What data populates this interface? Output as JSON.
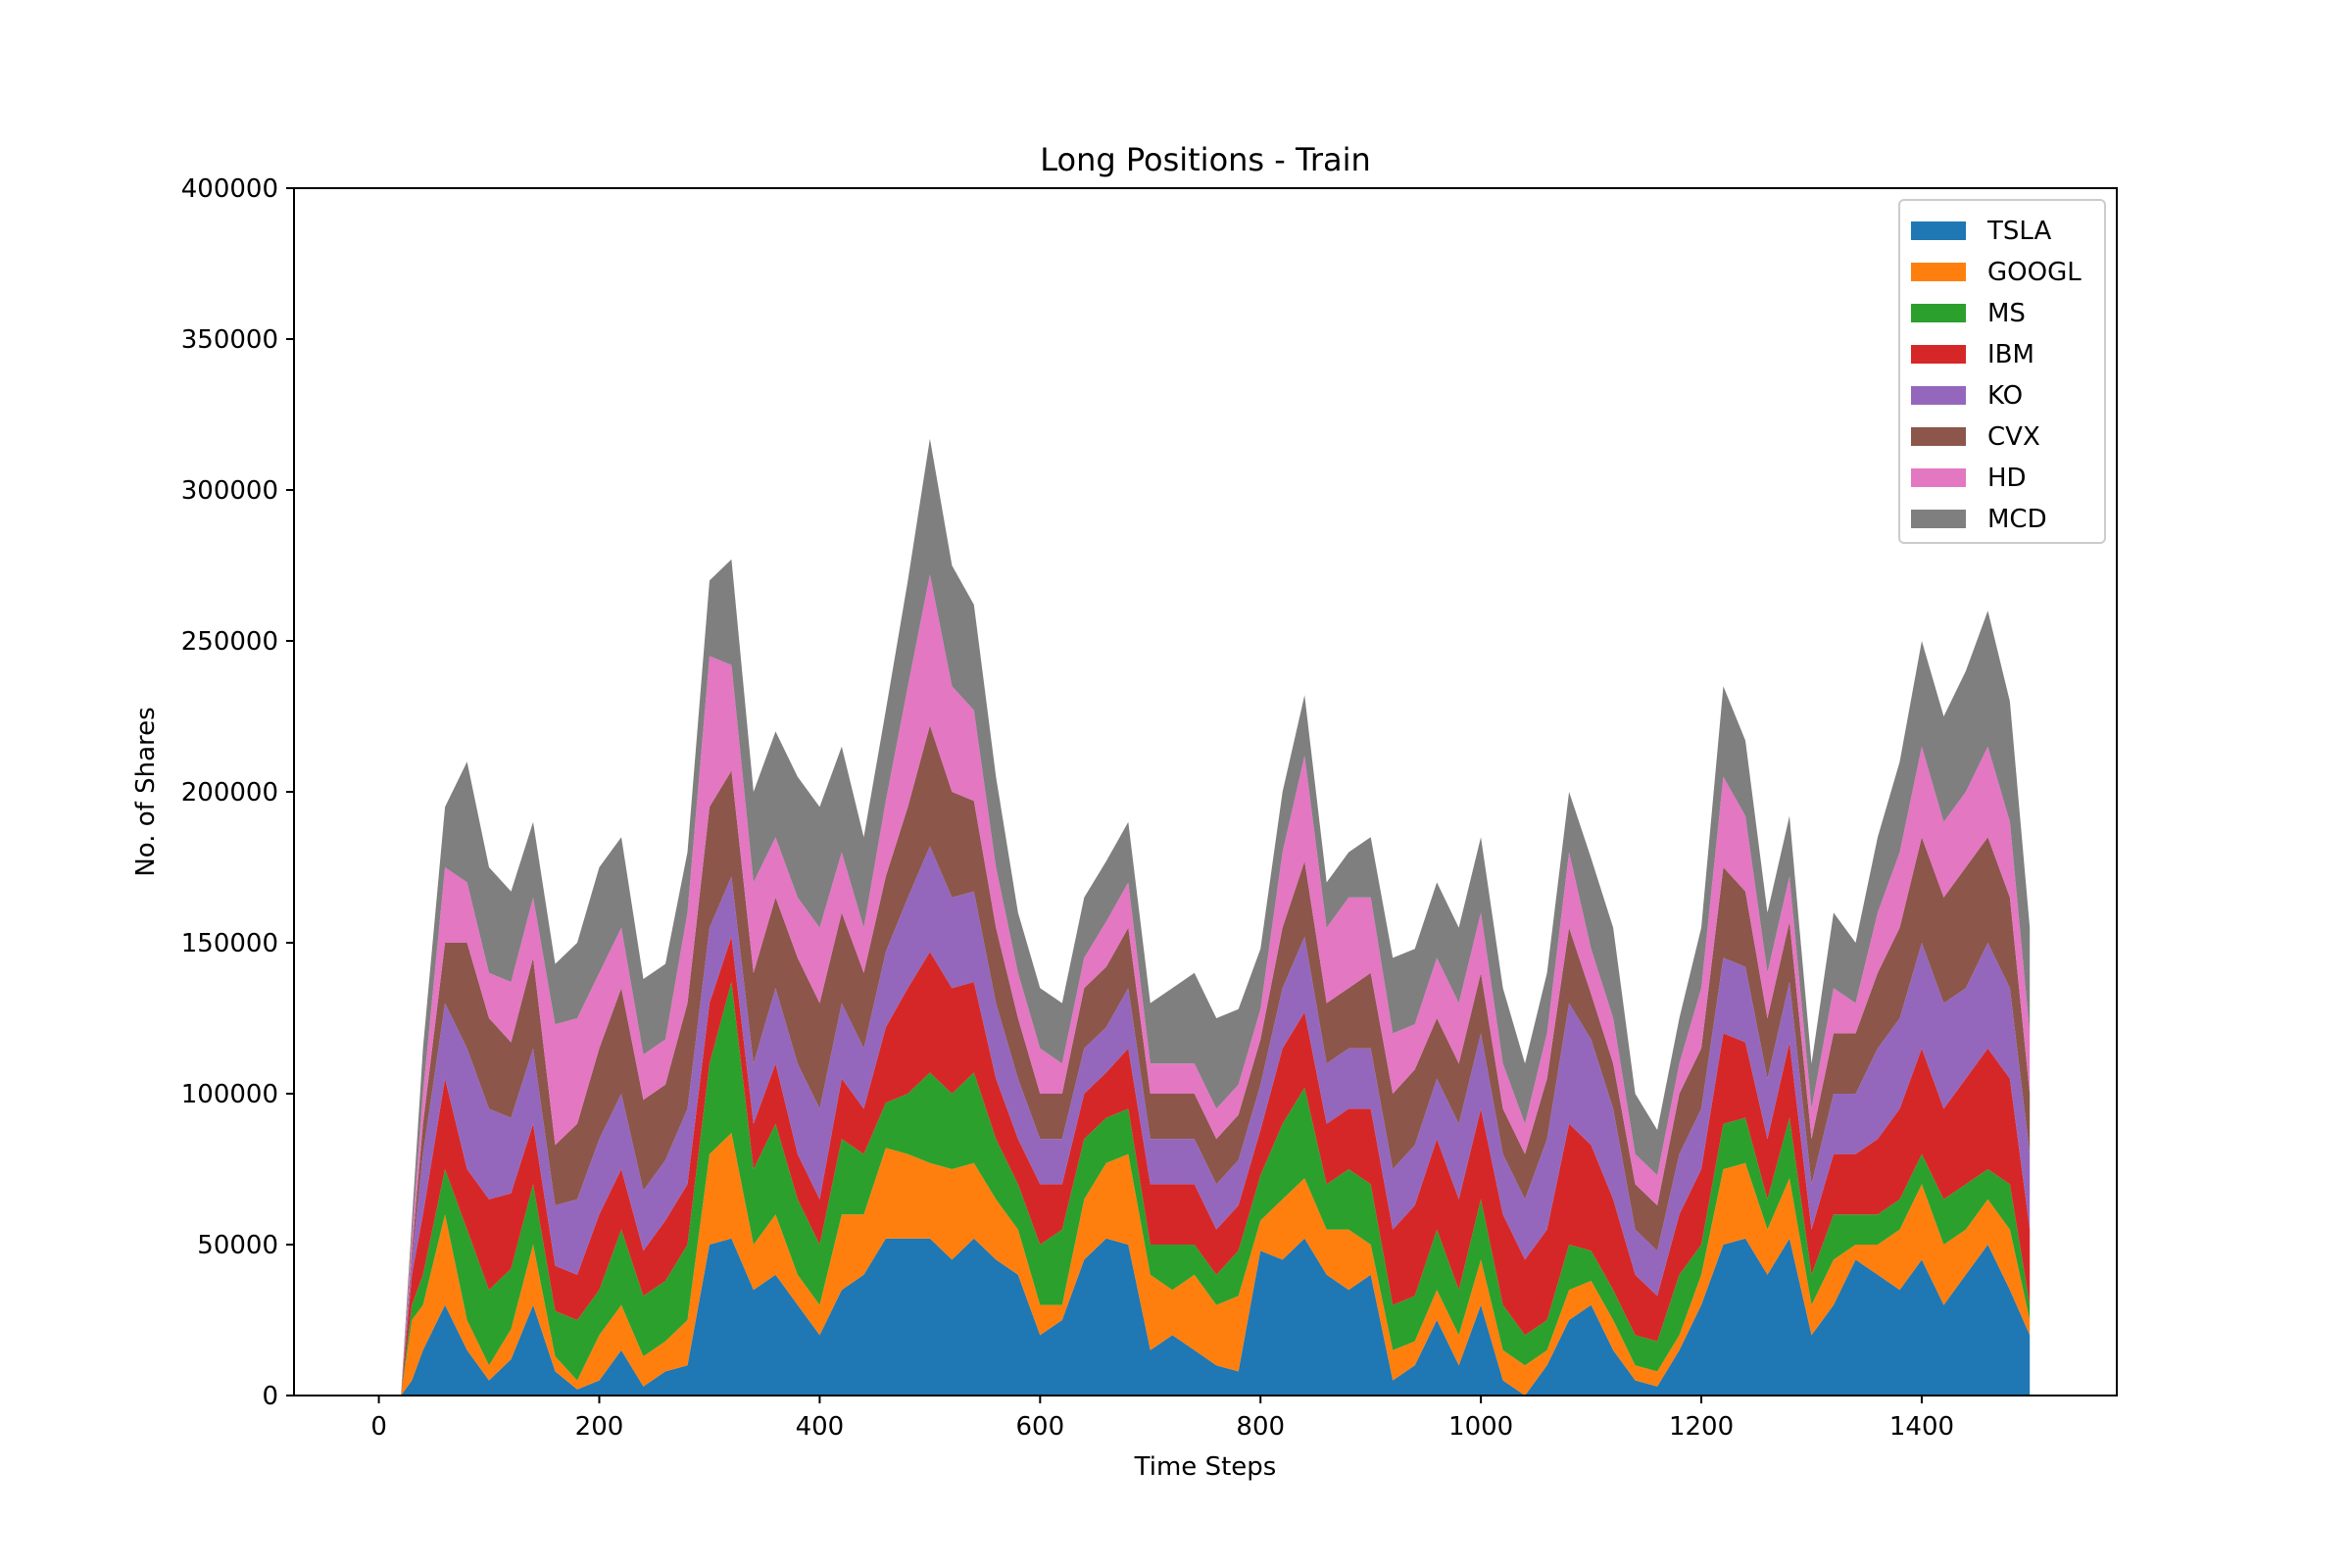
{
  "chart_data": {
    "type": "area",
    "stacked": true,
    "title": "Long Positions - Train",
    "xlabel": "Time Steps",
    "ylabel": "No. of Shares",
    "xlim": [
      -77,
      1577
    ],
    "ylim": [
      0,
      400000
    ],
    "xticks": [
      0,
      200,
      400,
      600,
      800,
      1000,
      1200,
      1400
    ],
    "yticks": [
      0,
      50000,
      100000,
      150000,
      200000,
      250000,
      300000,
      350000,
      400000
    ],
    "grid": false,
    "legend_position": "top-right",
    "x": [
      0,
      20,
      30,
      40,
      60,
      80,
      100,
      120,
      140,
      160,
      180,
      200,
      220,
      240,
      260,
      280,
      300,
      320,
      340,
      360,
      380,
      400,
      420,
      440,
      460,
      480,
      500,
      520,
      540,
      560,
      580,
      600,
      620,
      640,
      660,
      680,
      700,
      720,
      740,
      760,
      780,
      800,
      820,
      840,
      860,
      880,
      900,
      920,
      940,
      960,
      980,
      1000,
      1020,
      1040,
      1060,
      1080,
      1100,
      1120,
      1140,
      1160,
      1180,
      1200,
      1220,
      1240,
      1260,
      1280,
      1300,
      1320,
      1340,
      1360,
      1380,
      1400,
      1420,
      1440,
      1460,
      1480,
      1498
    ],
    "series": [
      {
        "name": "TSLA",
        "color": "#1f77b4",
        "values": [
          0,
          0,
          5000,
          15000,
          30000,
          15000,
          5000,
          12000,
          30000,
          8000,
          2000,
          5000,
          15000,
          3000,
          8000,
          10000,
          50000,
          52000,
          35000,
          40000,
          30000,
          20000,
          35000,
          40000,
          52000,
          52000,
          52000,
          45000,
          52000,
          45000,
          40000,
          20000,
          25000,
          45000,
          52000,
          50000,
          15000,
          20000,
          15000,
          10000,
          8000,
          48000,
          45000,
          52000,
          40000,
          35000,
          40000,
          5000,
          10000,
          25000,
          10000,
          30000,
          5000,
          0,
          10000,
          25000,
          30000,
          15000,
          5000,
          3000,
          15000,
          30000,
          50000,
          52000,
          40000,
          52000,
          20000,
          30000,
          45000,
          40000,
          35000,
          45000,
          30000,
          40000,
          50000,
          35000,
          20000
        ]
      },
      {
        "name": "GOOGL",
        "color": "#ff7f0e",
        "values": [
          0,
          0,
          20000,
          15000,
          30000,
          10000,
          5000,
          10000,
          20000,
          5000,
          3000,
          15000,
          15000,
          10000,
          10000,
          15000,
          30000,
          35000,
          15000,
          20000,
          10000,
          10000,
          25000,
          20000,
          30000,
          28000,
          25000,
          30000,
          25000,
          20000,
          15000,
          10000,
          5000,
          20000,
          25000,
          30000,
          25000,
          15000,
          25000,
          20000,
          25000,
          10000,
          20000,
          20000,
          15000,
          20000,
          10000,
          10000,
          8000,
          10000,
          10000,
          15000,
          10000,
          10000,
          5000,
          10000,
          8000,
          10000,
          5000,
          5000,
          5000,
          10000,
          25000,
          25000,
          15000,
          20000,
          10000,
          15000,
          5000,
          10000,
          20000,
          25000,
          20000,
          15000,
          15000,
          20000,
          5000
        ]
      },
      {
        "name": "MS",
        "color": "#2ca02c",
        "values": [
          0,
          0,
          5000,
          10000,
          15000,
          30000,
          25000,
          20000,
          20000,
          15000,
          20000,
          15000,
          25000,
          20000,
          20000,
          25000,
          30000,
          50000,
          25000,
          30000,
          25000,
          20000,
          25000,
          20000,
          15000,
          20000,
          30000,
          25000,
          30000,
          20000,
          15000,
          20000,
          25000,
          20000,
          15000,
          15000,
          10000,
          15000,
          10000,
          10000,
          15000,
          15000,
          25000,
          30000,
          15000,
          20000,
          20000,
          15000,
          15000,
          20000,
          15000,
          20000,
          15000,
          10000,
          10000,
          15000,
          10000,
          10000,
          10000,
          10000,
          20000,
          10000,
          15000,
          15000,
          10000,
          20000,
          10000,
          15000,
          10000,
          10000,
          10000,
          10000,
          15000,
          15000,
          10000,
          15000,
          5000
        ]
      },
      {
        "name": "IBM",
        "color": "#d62728",
        "values": [
          0,
          0,
          10000,
          20000,
          30000,
          20000,
          30000,
          25000,
          20000,
          15000,
          15000,
          25000,
          20000,
          15000,
          20000,
          20000,
          20000,
          15000,
          15000,
          20000,
          15000,
          15000,
          20000,
          15000,
          25000,
          35000,
          40000,
          35000,
          30000,
          20000,
          15000,
          20000,
          15000,
          15000,
          15000,
          20000,
          20000,
          20000,
          20000,
          15000,
          15000,
          15000,
          25000,
          25000,
          20000,
          20000,
          25000,
          25000,
          30000,
          30000,
          30000,
          30000,
          30000,
          25000,
          30000,
          40000,
          35000,
          30000,
          20000,
          15000,
          20000,
          25000,
          30000,
          25000,
          20000,
          25000,
          15000,
          20000,
          20000,
          25000,
          30000,
          35000,
          30000,
          35000,
          40000,
          35000,
          25000
        ]
      },
      {
        "name": "KO",
        "color": "#9467bd",
        "values": [
          0,
          0,
          5000,
          20000,
          25000,
          40000,
          30000,
          25000,
          25000,
          20000,
          25000,
          25000,
          25000,
          20000,
          20000,
          25000,
          25000,
          20000,
          20000,
          25000,
          30000,
          30000,
          25000,
          20000,
          25000,
          30000,
          35000,
          30000,
          30000,
          25000,
          20000,
          15000,
          15000,
          15000,
          15000,
          20000,
          15000,
          15000,
          15000,
          15000,
          15000,
          15000,
          20000,
          25000,
          20000,
          20000,
          20000,
          20000,
          20000,
          20000,
          25000,
          25000,
          20000,
          20000,
          30000,
          40000,
          35000,
          30000,
          15000,
          15000,
          20000,
          20000,
          25000,
          25000,
          20000,
          20000,
          15000,
          20000,
          20000,
          30000,
          30000,
          35000,
          35000,
          30000,
          35000,
          30000,
          25000
        ]
      },
      {
        "name": "CVX",
        "color": "#8c564b",
        "values": [
          0,
          0,
          3000,
          10000,
          20000,
          35000,
          30000,
          25000,
          30000,
          20000,
          25000,
          30000,
          35000,
          30000,
          25000,
          35000,
          40000,
          35000,
          30000,
          30000,
          35000,
          35000,
          30000,
          25000,
          25000,
          30000,
          40000,
          35000,
          30000,
          25000,
          20000,
          15000,
          15000,
          20000,
          20000,
          20000,
          15000,
          15000,
          15000,
          15000,
          15000,
          15000,
          20000,
          25000,
          20000,
          20000,
          25000,
          25000,
          25000,
          20000,
          20000,
          20000,
          15000,
          15000,
          20000,
          25000,
          15000,
          15000,
          15000,
          15000,
          20000,
          20000,
          30000,
          25000,
          20000,
          20000,
          15000,
          20000,
          20000,
          25000,
          30000,
          35000,
          35000,
          40000,
          35000,
          30000,
          20000
        ]
      },
      {
        "name": "HD",
        "color": "#e377c2",
        "values": [
          0,
          0,
          5000,
          10000,
          25000,
          20000,
          15000,
          20000,
          20000,
          40000,
          35000,
          25000,
          20000,
          15000,
          15000,
          30000,
          50000,
          35000,
          30000,
          20000,
          20000,
          25000,
          20000,
          15000,
          25000,
          40000,
          50000,
          35000,
          30000,
          20000,
          15000,
          15000,
          10000,
          10000,
          15000,
          15000,
          10000,
          10000,
          10000,
          10000,
          10000,
          10000,
          25000,
          35000,
          25000,
          30000,
          25000,
          20000,
          15000,
          20000,
          20000,
          20000,
          15000,
          10000,
          15000,
          25000,
          15000,
          15000,
          10000,
          10000,
          10000,
          20000,
          30000,
          25000,
          15000,
          15000,
          10000,
          15000,
          10000,
          20000,
          25000,
          30000,
          25000,
          25000,
          30000,
          25000,
          20000
        ]
      },
      {
        "name": "MCD",
        "color": "#7f7f7f",
        "values": [
          0,
          0,
          5000,
          15000,
          20000,
          40000,
          35000,
          30000,
          25000,
          20000,
          25000,
          35000,
          30000,
          25000,
          25000,
          20000,
          25000,
          35000,
          30000,
          35000,
          40000,
          40000,
          35000,
          30000,
          30000,
          35000,
          45000,
          40000,
          35000,
          30000,
          20000,
          20000,
          20000,
          20000,
          20000,
          20000,
          20000,
          25000,
          30000,
          30000,
          25000,
          20000,
          20000,
          20000,
          15000,
          15000,
          20000,
          25000,
          25000,
          25000,
          25000,
          25000,
          25000,
          20000,
          20000,
          20000,
          30000,
          30000,
          20000,
          15000,
          15000,
          20000,
          30000,
          25000,
          20000,
          20000,
          15000,
          25000,
          20000,
          25000,
          30000,
          35000,
          35000,
          40000,
          45000,
          40000,
          35000
        ]
      }
    ]
  }
}
